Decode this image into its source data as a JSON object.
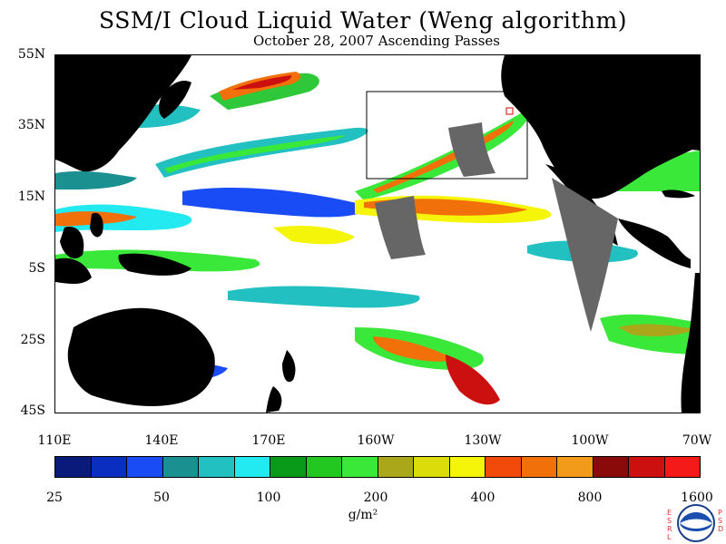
{
  "title": "SSM/I Cloud Liquid Water (Weng algorithm)",
  "subtitle": "October 28, 2007  Ascending Passes",
  "lat_labels": [
    "55N",
    "35N",
    "15N",
    "5S",
    "25S",
    "45S"
  ],
  "lon_labels": [
    "110E",
    "140E",
    "170E",
    "160W",
    "130W",
    "100W",
    "70W"
  ],
  "colorbar": {
    "colors": [
      "#0a1a7a",
      "#0a2fc0",
      "#1a4cf5",
      "#1a9090",
      "#22c0c0",
      "#22eaf0",
      "#0a9a1a",
      "#22c81f",
      "#3ae83a",
      "#aaa81a",
      "#dcdc0a",
      "#f5f50a",
      "#f24a0a",
      "#f2700a",
      "#f29a1a",
      "#8a0a0a",
      "#cc1010",
      "#f51a1a"
    ],
    "tick_labels": [
      "25",
      "50",
      "100",
      "200",
      "400",
      "800",
      "1600"
    ]
  },
  "units": "g/m²",
  "logo": {
    "name": "NOAA",
    "left_text": "ESRL",
    "right_text": "PSD"
  }
}
